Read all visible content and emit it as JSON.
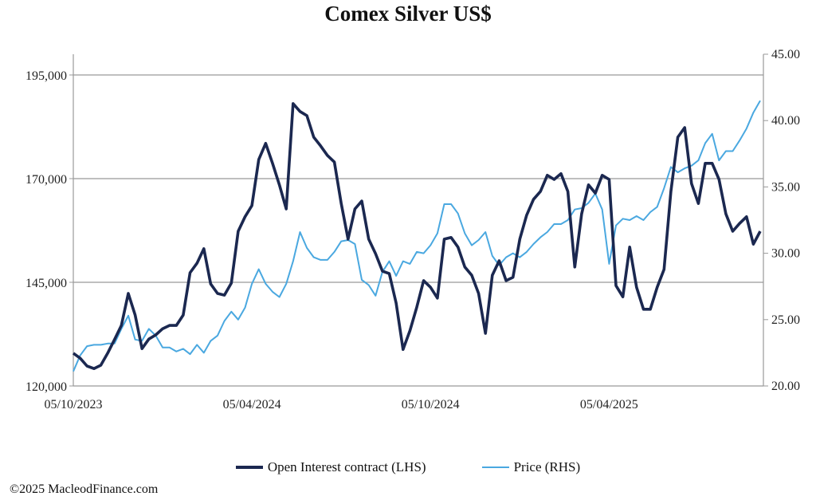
{
  "chart_data": {
    "type": "line",
    "title": "Comex Silver US$",
    "x_unit": "weeks since 05/10/2023",
    "x_ticks": [
      {
        "week": 0,
        "label": "05/10/2023"
      },
      {
        "week": 26,
        "label": "05/04/2024"
      },
      {
        "week": 52,
        "label": "05/10/2024"
      },
      {
        "week": 78,
        "label": "05/04/2025"
      }
    ],
    "y_left": {
      "range": [
        120000,
        200000
      ],
      "ticks": [
        120000,
        145000,
        170000,
        195000
      ],
      "tick_labels": [
        "120,000",
        "145,000",
        "170,000",
        "195,000"
      ]
    },
    "y_right": {
      "range": [
        20,
        45
      ],
      "ticks": [
        20,
        25,
        30,
        35,
        40,
        45
      ],
      "tick_labels": [
        "20.00",
        "25.00",
        "30.00",
        "35.00",
        "40.00",
        "45.00"
      ]
    },
    "grid": "horizontal at left-axis ticks",
    "legend_position": "bottom",
    "series": [
      {
        "name": "Open Interest contract (LHS)",
        "axis": "left",
        "color": "#1b2850",
        "values_thousands": [
          127.9,
          126.7,
          124.8,
          124.2,
          125.0,
          127.9,
          131.2,
          134.6,
          142.3,
          137.1,
          129.0,
          131.3,
          132.3,
          133.8,
          134.6,
          134.6,
          137.1,
          147.3,
          149.6,
          153.1,
          144.6,
          142.3,
          141.9,
          144.8,
          157.3,
          160.8,
          163.5,
          174.6,
          178.5,
          173.7,
          168.5,
          162.7,
          188.1,
          186.2,
          185.2,
          180.0,
          177.9,
          175.6,
          174.0,
          164.0,
          155.4,
          162.7,
          164.6,
          155.4,
          151.9,
          147.7,
          147.1,
          140.0,
          128.8,
          133.3,
          139.0,
          145.4,
          143.8,
          141.2,
          155.4,
          155.8,
          153.5,
          148.7,
          146.7,
          142.3,
          132.7,
          146.7,
          150.2,
          145.4,
          146.2,
          155.4,
          161.2,
          165.0,
          166.9,
          170.8,
          169.8,
          171.2,
          166.9,
          148.7,
          161.5,
          168.5,
          166.5,
          170.8,
          169.8,
          144.2,
          141.5,
          153.5,
          143.8,
          138.5,
          138.5,
          143.8,
          148.1,
          166.9,
          180.0,
          182.3,
          168.8,
          164.0,
          173.7,
          173.7,
          169.8,
          161.5,
          157.3,
          159.2,
          160.8,
          154.2,
          157.3
        ]
      },
      {
        "name": "Price (RHS)",
        "axis": "right",
        "color": "#4aa8e0",
        "values": [
          21.1,
          22.3,
          23.0,
          23.1,
          23.1,
          23.2,
          23.2,
          24.3,
          25.3,
          23.5,
          23.4,
          24.3,
          23.8,
          22.9,
          22.9,
          22.6,
          22.8,
          22.4,
          23.1,
          22.5,
          23.4,
          23.8,
          24.9,
          25.6,
          25.0,
          25.9,
          27.7,
          28.8,
          27.7,
          27.1,
          26.7,
          27.7,
          29.4,
          31.6,
          30.4,
          29.7,
          29.5,
          29.5,
          30.1,
          30.9,
          31.0,
          30.7,
          28.0,
          27.6,
          26.8,
          28.6,
          29.4,
          28.3,
          29.4,
          29.2,
          30.1,
          30.0,
          30.6,
          31.5,
          33.7,
          33.7,
          33.0,
          31.5,
          30.6,
          31.0,
          31.6,
          29.8,
          29.1,
          29.7,
          30.0,
          29.7,
          30.1,
          30.7,
          31.2,
          31.6,
          32.2,
          32.2,
          32.5,
          33.3,
          33.4,
          33.8,
          34.5,
          33.3,
          29.2,
          32.1,
          32.6,
          32.5,
          32.8,
          32.5,
          33.1,
          33.5,
          34.9,
          36.5,
          36.1,
          36.4,
          36.6,
          37.0,
          38.3,
          39.0,
          37.0,
          37.7,
          37.7,
          38.5,
          39.4,
          40.6,
          41.5
        ]
      }
    ]
  },
  "legend": {
    "oi_label": "Open Interest contract (LHS)",
    "price_label": "Price (RHS)"
  },
  "footer": {
    "copyright": "©2025 MacleodFinance.com"
  }
}
